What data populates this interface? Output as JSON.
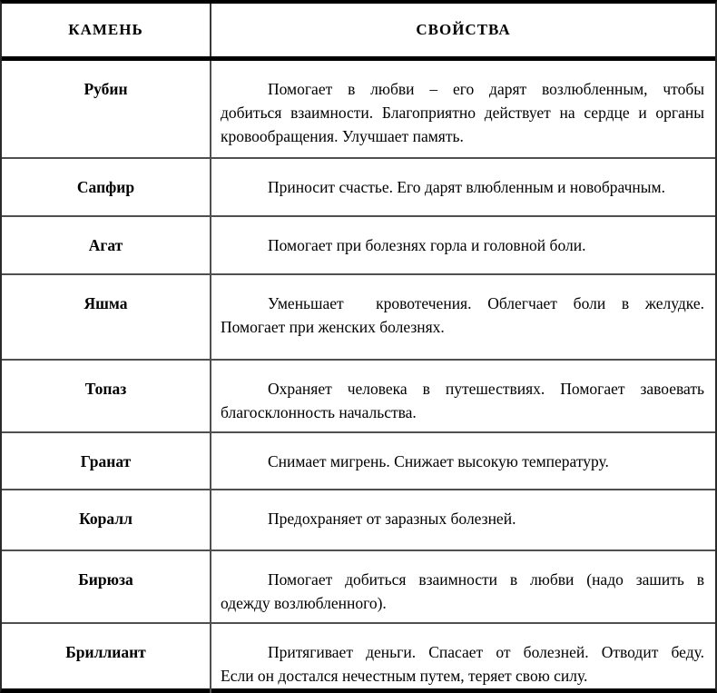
{
  "table": {
    "headers": [
      {
        "label": "КАМЕНЬ"
      },
      {
        "label": "СВОЙСТВА"
      }
    ],
    "rows": [
      {
        "stone": "Рубин",
        "lines": [
          "Помогает в любви – его дарят возлюбленным, чтобы",
          "добиться взаимности. Благоприятно действует на сердце и органы",
          "кровообращения. Улучшает память."
        ]
      },
      {
        "stone": "Сапфир",
        "lines": [
          "Приносит счастье. Его дарят влюбленным и новобрачным."
        ]
      },
      {
        "stone": "Агат",
        "lines": [
          "Помогает при болезнях горла и головной боли."
        ]
      },
      {
        "stone": "Яшма",
        "lines": [
          "Уменьшает  кровотечения. Облегчает боли в желудке.",
          "Помогает при женских болезнях."
        ]
      },
      {
        "stone": "Топаз",
        "lines": [
          "Охраняет человека в путешествиях. Помогает завоевать",
          "благосклонность начальства."
        ]
      },
      {
        "stone": "Гранат",
        "lines": [
          "Снимает мигрень. Снижает высокую температуру."
        ]
      },
      {
        "stone": "Коралл",
        "lines": [
          "Предохраняет от заразных болезней."
        ]
      },
      {
        "stone": "Бирюза",
        "lines": [
          "Помогает добиться взаимности в любви (надо зашить в",
          "одежду возлюбленного)."
        ]
      },
      {
        "stone": "Бриллиант",
        "lines": [
          "Притягивает деньги. Спасает от болезней. Отводит беду.",
          "Если он достался нечестным путем, теряет свою силу."
        ]
      }
    ]
  },
  "colors": {
    "thick_border": "#000000",
    "thin_border": "#4f4f4f",
    "text": "#000000",
    "background": "#ffffff"
  }
}
